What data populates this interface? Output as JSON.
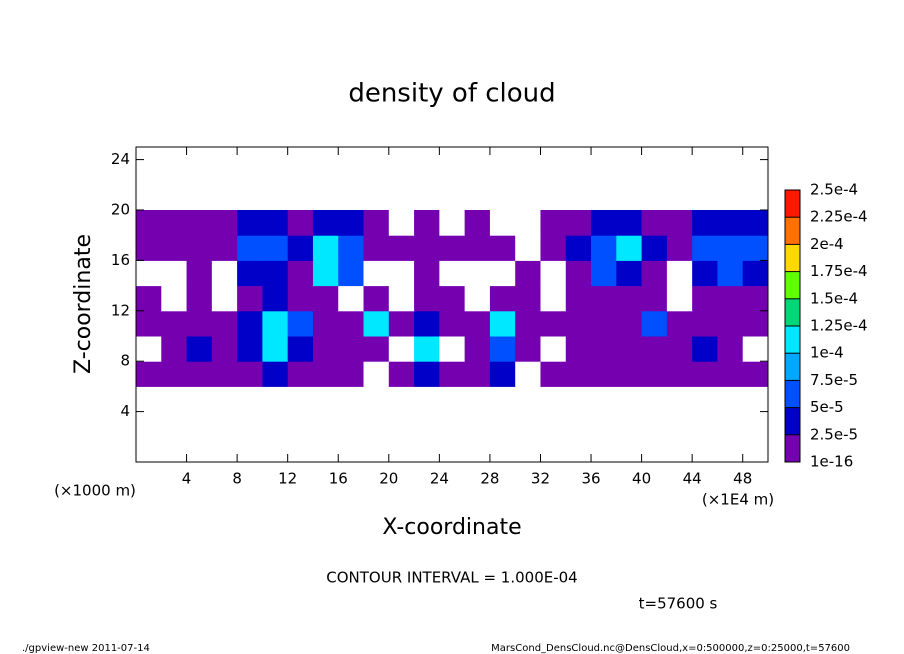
{
  "chart_data": {
    "type": "contour",
    "title": "density of cloud",
    "xlabel": "X-coordinate",
    "ylabel": "Z-coordinate",
    "x_unit": "(×1E4 m)",
    "y_unit": "(×1000 m)",
    "contour_interval": "CONTOUR INTERVAL = 1.000E-04",
    "time_label": "t=57600 s",
    "footer_left": "./gpview-new  2011-07-14",
    "footer_right": "MarsCond_DensCloud.nc@DensCloud,x=0:500000,z=0:25000,t=57600",
    "xlim": [
      0,
      50
    ],
    "ylim": [
      0,
      25
    ],
    "xticks": [
      4,
      8,
      12,
      16,
      20,
      24,
      28,
      32,
      36,
      40,
      44,
      48
    ],
    "yticks": [
      4,
      8,
      12,
      16,
      20,
      24
    ],
    "levels": [
      {
        "value": 1e-16,
        "label": "1e-16"
      },
      {
        "value": 2.5e-05,
        "label": "2.5e-5"
      },
      {
        "value": 5e-05,
        "label": "5e-5"
      },
      {
        "value": 7.5e-05,
        "label": "7.5e-5"
      },
      {
        "value": 0.0001,
        "label": "1e-4"
      },
      {
        "value": 0.000125,
        "label": "1.25e-4"
      },
      {
        "value": 0.00015,
        "label": "1.5e-4"
      },
      {
        "value": 0.000175,
        "label": "1.75e-4"
      },
      {
        "value": 0.0002,
        "label": "2e-4"
      },
      {
        "value": 0.000225,
        "label": "2.25e-4"
      },
      {
        "value": 0.00025,
        "label": "2.5e-4"
      }
    ],
    "colors": [
      "#7400b0",
      "#0000c8",
      "#0050ff",
      "#00a8ff",
      "#00e8ff",
      "#00d878",
      "#60ff00",
      "#ffd800",
      "#ff7000",
      "#ff1800"
    ],
    "x": [
      1,
      3,
      5,
      7,
      9,
      11,
      13,
      15,
      17,
      19,
      21,
      23,
      25,
      27,
      29,
      31,
      33,
      35,
      37,
      39,
      41,
      43,
      45,
      47,
      49
    ],
    "y": [
      7,
      9,
      11,
      13,
      15,
      17,
      19
    ],
    "z": [
      [
        1e-16,
        1e-16,
        1e-16,
        1e-16,
        1e-16,
        3e-05,
        1e-16,
        1e-16,
        1e-16,
        0,
        1e-16,
        3e-05,
        1e-16,
        1e-16,
        3e-05,
        0,
        1e-16,
        1e-16,
        1e-16,
        1e-16,
        1e-16,
        1e-16,
        1e-16,
        1e-16,
        1e-16
      ],
      [
        0,
        1e-16,
        3e-05,
        1e-16,
        3e-05,
        0.00011,
        3e-05,
        1e-16,
        1e-16,
        1e-16,
        0,
        0.00011,
        0,
        1e-16,
        6e-05,
        1e-16,
        0,
        1e-16,
        1e-16,
        1e-16,
        1e-16,
        1e-16,
        3e-05,
        1e-16,
        0
      ],
      [
        1e-16,
        1e-16,
        1e-16,
        1e-16,
        3e-05,
        0.00011,
        6e-05,
        1e-16,
        1e-16,
        0.00011,
        1e-16,
        3e-05,
        1e-16,
        1e-16,
        0.00011,
        1e-16,
        1e-16,
        1e-16,
        1e-16,
        1e-16,
        6e-05,
        1e-16,
        1e-16,
        1e-16,
        1e-16
      ],
      [
        1e-16,
        0,
        1e-16,
        0,
        1e-16,
        3e-05,
        1e-16,
        1e-16,
        0,
        1e-16,
        0,
        1e-16,
        1e-16,
        0,
        1e-16,
        1e-16,
        0,
        1e-16,
        1e-16,
        1e-16,
        1e-16,
        0,
        1e-16,
        1e-16,
        1e-16
      ],
      [
        0,
        0,
        1e-16,
        0,
        3e-05,
        3e-05,
        1e-16,
        0.00011,
        6e-05,
        0,
        0,
        1e-16,
        0,
        0,
        0,
        1e-16,
        0,
        1e-16,
        6e-05,
        3e-05,
        1e-16,
        0,
        3e-05,
        6e-05,
        3e-05
      ],
      [
        1e-16,
        1e-16,
        1e-16,
        1e-16,
        6e-05,
        6e-05,
        3e-05,
        0.00011,
        6e-05,
        1e-16,
        1e-16,
        1e-16,
        1e-16,
        1e-16,
        1e-16,
        0,
        1e-16,
        3e-05,
        6e-05,
        0.00011,
        3e-05,
        1e-16,
        6e-05,
        6e-05,
        6e-05
      ],
      [
        1e-16,
        1e-16,
        1e-16,
        1e-16,
        3e-05,
        3e-05,
        1e-16,
        3e-05,
        3e-05,
        1e-16,
        0,
        1e-16,
        0,
        1e-16,
        0,
        0,
        1e-16,
        1e-16,
        3e-05,
        3e-05,
        1e-16,
        1e-16,
        3e-05,
        3e-05,
        3e-05
      ]
    ]
  }
}
